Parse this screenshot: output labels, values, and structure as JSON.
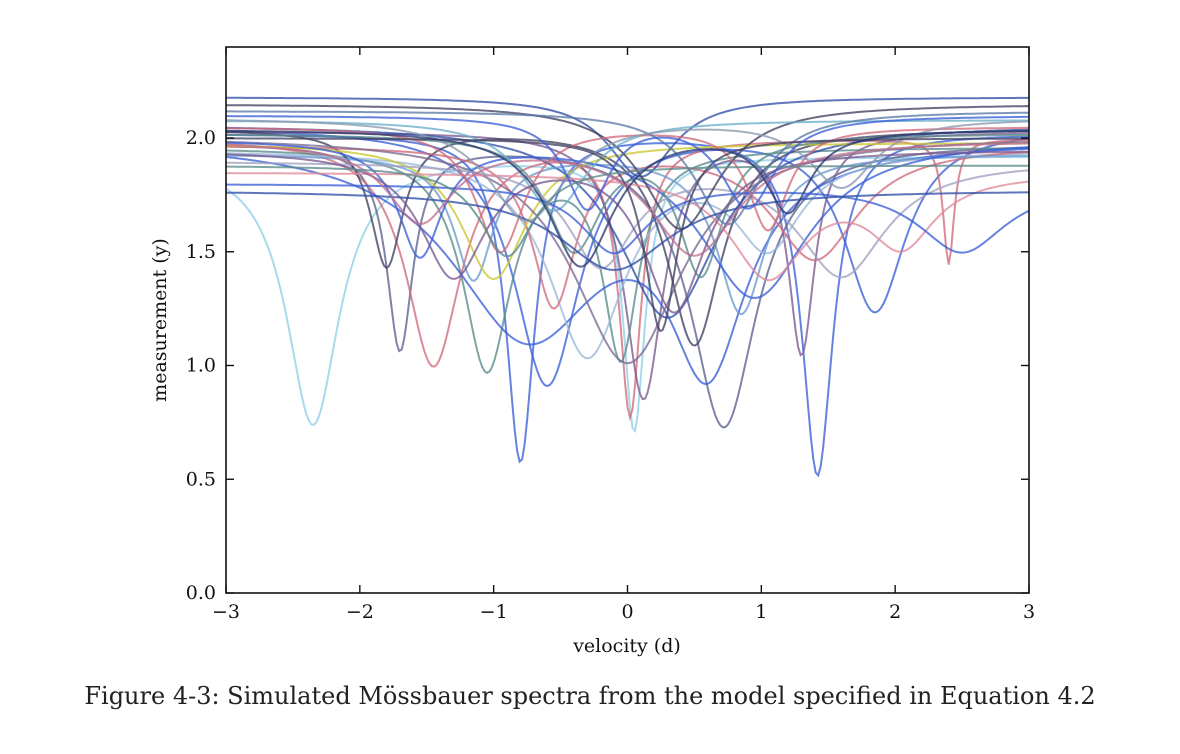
{
  "caption": "Figure 4-3: Simulated Mössbauer spectra from the model specified in Equation 4.2",
  "chart_data": {
    "type": "line",
    "title": "",
    "xlabel": "velocity (d)",
    "ylabel": "measurement (y)",
    "xlim": [
      -3,
      3
    ],
    "ylim": [
      0,
      2.4
    ],
    "xticks": [
      -3,
      -2,
      -1,
      0,
      1,
      2,
      3
    ],
    "xtick_labels": [
      "−3",
      "−2",
      "−1",
      "0",
      "1",
      "2",
      "3"
    ],
    "yticks": [
      0.0,
      0.5,
      1.0,
      1.5,
      2.0
    ],
    "ytick_labels": [
      "0.0",
      "0.5",
      "1.0",
      "1.5",
      "2.0"
    ],
    "grid": false,
    "legend": "none",
    "series_model": "baseline minus sum of Lorentzian dips: y(x) = b - Σ a_i·w_i²/((x - c_i)² + w_i²)",
    "series": [
      {
        "color": "#8fd0e8",
        "baseline": 1.92,
        "dips": [
          {
            "center": -2.35,
            "depth": 1.18,
            "width": 0.24
          },
          {
            "center": 0.05,
            "depth": 1.2,
            "width": 0.1
          }
        ]
      },
      {
        "color": "#3a5fd8",
        "baseline": 2.02,
        "dips": [
          {
            "center": -0.8,
            "depth": 1.44,
            "width": 0.13
          },
          {
            "center": 1.42,
            "depth": 1.5,
            "width": 0.14
          }
        ]
      },
      {
        "color": "#3a5fd8",
        "baseline": 2.05,
        "dips": [
          {
            "center": -0.6,
            "depth": 1.13,
            "width": 0.3
          },
          {
            "center": 1.85,
            "depth": 0.8,
            "width": 0.28
          }
        ]
      },
      {
        "color": "#5a6090",
        "baseline": 1.98,
        "dips": [
          {
            "center": 0.72,
            "depth": 1.25,
            "width": 0.3
          },
          {
            "center": -1.7,
            "depth": 0.9,
            "width": 0.12
          }
        ]
      },
      {
        "color": "#d06a7a",
        "baseline": 2.0,
        "dips": [
          {
            "center": -1.45,
            "depth": 1.0,
            "width": 0.25
          },
          {
            "center": 0.02,
            "depth": 1.2,
            "width": 0.1
          },
          {
            "center": 2.4,
            "depth": 0.55,
            "width": 0.05
          }
        ]
      },
      {
        "color": "#7a5a90",
        "baseline": 2.03,
        "dips": [
          {
            "center": 0.12,
            "depth": 1.17,
            "width": 0.18
          },
          {
            "center": 1.3,
            "depth": 0.96,
            "width": 0.12
          }
        ]
      },
      {
        "color": "#5a8a8a",
        "baseline": 1.96,
        "dips": [
          {
            "center": -1.05,
            "depth": 0.97,
            "width": 0.22
          },
          {
            "center": -0.05,
            "depth": 0.9,
            "width": 0.16
          }
        ]
      },
      {
        "color": "#3a5fd8",
        "baseline": 2.0,
        "dips": [
          {
            "center": -0.75,
            "depth": 0.85,
            "width": 0.7
          },
          {
            "center": 0.6,
            "depth": 0.9,
            "width": 0.35
          }
        ]
      },
      {
        "color": "#9ab8d8",
        "baseline": 1.95,
        "dips": [
          {
            "center": -0.3,
            "depth": 0.9,
            "width": 0.35
          },
          {
            "center": 1.05,
            "depth": 0.4,
            "width": 0.3
          }
        ]
      },
      {
        "color": "#404060",
        "baseline": 2.04,
        "dips": [
          {
            "center": 0.5,
            "depth": 0.95,
            "width": 0.25
          },
          {
            "center": -1.8,
            "depth": 0.6,
            "width": 0.15
          }
        ]
      },
      {
        "color": "#d06a7a",
        "baseline": 1.97,
        "dips": [
          {
            "center": 1.4,
            "depth": 0.5,
            "width": 0.4
          },
          {
            "center": -0.55,
            "depth": 0.7,
            "width": 0.2
          }
        ]
      },
      {
        "color": "#2f4fa8",
        "baseline": 2.06,
        "dips": [
          {
            "center": 0.3,
            "depth": 0.85,
            "width": 0.45
          }
        ]
      },
      {
        "color": "#6a9ad0",
        "baseline": 1.93,
        "dips": [
          {
            "center": -1.15,
            "depth": 0.55,
            "width": 0.18
          },
          {
            "center": 0.85,
            "depth": 0.7,
            "width": 0.22
          }
        ]
      },
      {
        "color": "#c9c830",
        "baseline": 1.98,
        "dips": [
          {
            "center": -1.0,
            "depth": 0.6,
            "width": 0.3
          }
        ]
      },
      {
        "color": "#7a6a90",
        "baseline": 2.01,
        "dips": [
          {
            "center": 0.0,
            "depth": 1.0,
            "width": 0.5
          }
        ]
      },
      {
        "color": "#3a5fd8",
        "baseline": 2.0,
        "dips": [
          {
            "center": -1.55,
            "depth": 0.5,
            "width": 0.2
          },
          {
            "center": 0.95,
            "depth": 0.7,
            "width": 0.5
          }
        ]
      },
      {
        "color": "#5a8a8a",
        "baseline": 2.02,
        "dips": [
          {
            "center": 0.55,
            "depth": 0.6,
            "width": 0.2
          },
          {
            "center": -0.4,
            "depth": 0.5,
            "width": 0.25
          }
        ]
      },
      {
        "color": "#a0a0c0",
        "baseline": 1.9,
        "dips": [
          {
            "center": 1.6,
            "depth": 0.5,
            "width": 0.4
          },
          {
            "center": -0.2,
            "depth": 0.45,
            "width": 0.3
          }
        ]
      },
      {
        "color": "#e08a9a",
        "baseline": 1.85,
        "dips": [
          {
            "center": 1.05,
            "depth": 0.45,
            "width": 0.35
          },
          {
            "center": 2.05,
            "depth": 0.3,
            "width": 0.3
          }
        ]
      },
      {
        "color": "#2f4fa8",
        "baseline": 2.18,
        "dips": [
          {
            "center": 0.1,
            "depth": 0.35,
            "width": 0.3
          }
        ]
      },
      {
        "color": "#404060",
        "baseline": 2.15,
        "dips": [
          {
            "center": 0.4,
            "depth": 0.55,
            "width": 0.35
          }
        ]
      },
      {
        "color": "#6ab0c8",
        "baseline": 2.08,
        "dips": [
          {
            "center": -0.55,
            "depth": 0.4,
            "width": 0.3
          }
        ]
      },
      {
        "color": "#3a5fd8",
        "baseline": 1.8,
        "dips": [
          {
            "center": 2.5,
            "depth": 0.3,
            "width": 0.4
          },
          {
            "center": -0.1,
            "depth": 0.3,
            "width": 0.3
          }
        ]
      },
      {
        "color": "#d06a7a",
        "baseline": 2.05,
        "dips": [
          {
            "center": -0.95,
            "depth": 0.55,
            "width": 0.22
          },
          {
            "center": 1.05,
            "depth": 0.45,
            "width": 0.18
          }
        ]
      },
      {
        "color": "#7a5a90",
        "baseline": 1.95,
        "dips": [
          {
            "center": -1.3,
            "depth": 0.55,
            "width": 0.3
          },
          {
            "center": 0.35,
            "depth": 0.7,
            "width": 0.28
          }
        ]
      },
      {
        "color": "#5a7aa8",
        "baseline": 2.12,
        "dips": [
          {
            "center": 0.75,
            "depth": 0.5,
            "width": 0.3
          }
        ]
      },
      {
        "color": "#2f4fa8",
        "baseline": 1.77,
        "dips": [
          {
            "center": -0.1,
            "depth": 0.35,
            "width": 0.5
          }
        ]
      },
      {
        "color": "#8a9ab0",
        "baseline": 2.09,
        "dips": [
          {
            "center": -0.75,
            "depth": 0.45,
            "width": 0.35
          },
          {
            "center": 1.6,
            "depth": 0.3,
            "width": 0.3
          }
        ]
      },
      {
        "color": "#404060",
        "baseline": 2.0,
        "dips": [
          {
            "center": 0.25,
            "depth": 0.85,
            "width": 0.15
          }
        ]
      },
      {
        "color": "#3a5fd8",
        "baseline": 2.1,
        "dips": [
          {
            "center": 0.9,
            "depth": 0.4,
            "width": 0.25
          },
          {
            "center": -0.3,
            "depth": 0.4,
            "width": 0.2
          }
        ]
      },
      {
        "color": "#c07090",
        "baseline": 1.99,
        "dips": [
          {
            "center": -1.55,
            "depth": 0.35,
            "width": 0.3
          },
          {
            "center": 0.5,
            "depth": 0.5,
            "width": 0.4
          }
        ]
      },
      {
        "color": "#5a8a8a",
        "baseline": 1.88,
        "dips": [
          {
            "center": -0.9,
            "depth": 0.4,
            "width": 0.25
          }
        ]
      },
      {
        "color": "#2a3a70",
        "baseline": 2.04,
        "dips": [
          {
            "center": -0.35,
            "depth": 0.6,
            "width": 0.3
          },
          {
            "center": 1.2,
            "depth": 0.35,
            "width": 0.2
          }
        ]
      }
    ]
  }
}
